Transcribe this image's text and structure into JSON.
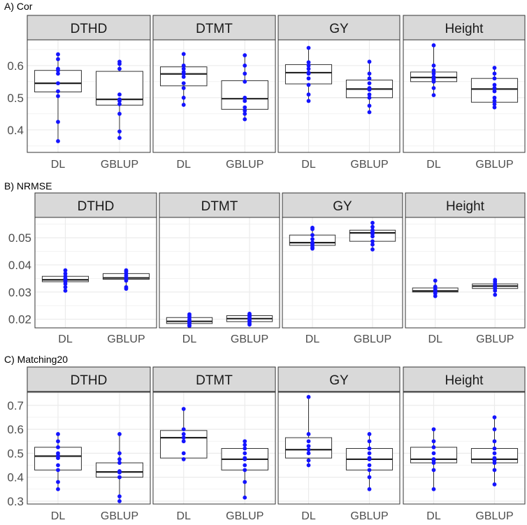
{
  "chart_data": [
    {
      "type": "boxplot",
      "title": "A) Cor",
      "panels": [
        "DTHD",
        "DTMT",
        "GY",
        "Height"
      ],
      "categories": [
        "DL",
        "GBLUP"
      ],
      "ylim": [
        0.33,
        0.68
      ],
      "yticks": [
        0.4,
        0.5,
        0.6
      ],
      "ytick_labels": [
        "0.4",
        "0.5",
        "0.6"
      ],
      "boxes": [
        [
          {
            "q1": 0.518,
            "median": 0.545,
            "q3": 0.585,
            "whislo": 0.365,
            "whishi": 0.635,
            "points": [
              0.365,
              0.425,
              0.505,
              0.52,
              0.545,
              0.575,
              0.585,
              0.59,
              0.62,
              0.635
            ]
          },
          {
            "q1": 0.477,
            "median": 0.495,
            "q3": 0.582,
            "whislo": 0.375,
            "whishi": 0.612,
            "points": [
              0.375,
              0.395,
              0.45,
              0.48,
              0.49,
              0.495,
              0.51,
              0.59,
              0.605,
              0.612
            ]
          }
        ],
        [
          {
            "q1": 0.537,
            "median": 0.574,
            "q3": 0.596,
            "whislo": 0.478,
            "whishi": 0.636,
            "points": [
              0.478,
              0.5,
              0.53,
              0.545,
              0.565,
              0.574,
              0.58,
              0.59,
              0.6,
              0.636
            ]
          },
          {
            "q1": 0.464,
            "median": 0.497,
            "q3": 0.553,
            "whislo": 0.433,
            "whishi": 0.632,
            "points": [
              0.433,
              0.45,
              0.46,
              0.47,
              0.49,
              0.5,
              0.55,
              0.575,
              0.6,
              0.632
            ]
          }
        ],
        [
          {
            "q1": 0.543,
            "median": 0.578,
            "q3": 0.603,
            "whislo": 0.49,
            "whishi": 0.655,
            "points": [
              0.49,
              0.51,
              0.54,
              0.56,
              0.575,
              0.578,
              0.59,
              0.6,
              0.61,
              0.655
            ]
          },
          {
            "q1": 0.5,
            "median": 0.527,
            "q3": 0.555,
            "whislo": 0.455,
            "whishi": 0.612,
            "points": [
              0.455,
              0.475,
              0.5,
              0.51,
              0.525,
              0.53,
              0.545,
              0.56,
              0.575,
              0.612
            ]
          }
        ],
        [
          {
            "q1": 0.55,
            "median": 0.563,
            "q3": 0.58,
            "whislo": 0.508,
            "whishi": 0.663,
            "points": [
              0.508,
              0.53,
              0.55,
              0.555,
              0.56,
              0.565,
              0.575,
              0.585,
              0.6,
              0.663
            ]
          },
          {
            "q1": 0.486,
            "median": 0.527,
            "q3": 0.56,
            "whislo": 0.47,
            "whishi": 0.593,
            "points": [
              0.47,
              0.48,
              0.49,
              0.5,
              0.52,
              0.53,
              0.54,
              0.56,
              0.575,
              0.593
            ]
          }
        ]
      ]
    },
    {
      "type": "boxplot",
      "title": "B) NRMSE",
      "panels": [
        "DTHD",
        "DTMT",
        "GY",
        "Height"
      ],
      "categories": [
        "DL",
        "GBLUP"
      ],
      "ylim": [
        0.0168,
        0.0575
      ],
      "yticks": [
        0.02,
        0.03,
        0.04,
        0.05
      ],
      "ytick_labels": [
        "0.02",
        "0.03",
        "0.04",
        "0.05"
      ],
      "boxes": [
        [
          {
            "q1": 0.0338,
            "median": 0.0345,
            "q3": 0.0358,
            "whislo": 0.0305,
            "whishi": 0.038,
            "points": [
              0.0305,
              0.0318,
              0.033,
              0.0338,
              0.0342,
              0.0345,
              0.035,
              0.0358,
              0.0368,
              0.038
            ]
          },
          {
            "q1": 0.0347,
            "median": 0.0352,
            "q3": 0.0368,
            "whislo": 0.0312,
            "whishi": 0.038,
            "points": [
              0.0312,
              0.0318,
              0.0342,
              0.0348,
              0.035,
              0.0352,
              0.036,
              0.0368,
              0.0375,
              0.038
            ]
          }
        ],
        [
          {
            "q1": 0.0184,
            "median": 0.0192,
            "q3": 0.0206,
            "whislo": 0.0175,
            "whishi": 0.0218,
            "points": [
              0.0175,
              0.0178,
              0.0184,
              0.0188,
              0.019,
              0.0192,
              0.0198,
              0.0206,
              0.0212,
              0.0218
            ]
          },
          {
            "q1": 0.0191,
            "median": 0.0202,
            "q3": 0.0213,
            "whislo": 0.018,
            "whishi": 0.022,
            "points": [
              0.018,
              0.0185,
              0.0191,
              0.0195,
              0.02,
              0.0202,
              0.0208,
              0.0213,
              0.0216,
              0.022
            ]
          }
        ],
        [
          {
            "q1": 0.0472,
            "median": 0.0482,
            "q3": 0.051,
            "whislo": 0.046,
            "whishi": 0.0537,
            "points": [
              0.046,
              0.0465,
              0.0472,
              0.0478,
              0.048,
              0.0482,
              0.0495,
              0.051,
              0.0532,
              0.0537
            ]
          },
          {
            "q1": 0.0487,
            "median": 0.0518,
            "q3": 0.0528,
            "whislo": 0.0457,
            "whishi": 0.0555,
            "points": [
              0.0457,
              0.0475,
              0.0487,
              0.0505,
              0.0515,
              0.0518,
              0.052,
              0.0528,
              0.054,
              0.0555
            ]
          }
        ],
        [
          {
            "q1": 0.03,
            "median": 0.0304,
            "q3": 0.0315,
            "whislo": 0.0285,
            "whishi": 0.0342,
            "points": [
              0.0285,
              0.0295,
              0.03,
              0.0302,
              0.0303,
              0.0304,
              0.0308,
              0.0315,
              0.032,
              0.0342
            ]
          },
          {
            "q1": 0.0313,
            "median": 0.0322,
            "q3": 0.033,
            "whislo": 0.029,
            "whishi": 0.0345,
            "points": [
              0.029,
              0.0305,
              0.0313,
              0.0316,
              0.032,
              0.0322,
              0.0326,
              0.033,
              0.0338,
              0.0345
            ]
          }
        ]
      ]
    },
    {
      "type": "boxplot",
      "title": "C) Matching20",
      "panels": [
        "DTHD",
        "DTMT",
        "GY",
        "Height"
      ],
      "categories": [
        "DL",
        "GBLUP"
      ],
      "ylim": [
        0.288,
        0.755
      ],
      "yticks": [
        0.3,
        0.4,
        0.5,
        0.6,
        0.7
      ],
      "ytick_labels": [
        "0.3",
        "0.4",
        "0.5",
        "0.6",
        "0.7"
      ],
      "boxes": [
        [
          {
            "q1": 0.43,
            "median": 0.488,
            "q3": 0.525,
            "whislo": 0.35,
            "whishi": 0.58,
            "points": [
              0.35,
              0.38,
              0.43,
              0.45,
              0.48,
              0.49,
              0.5,
              0.525,
              0.55,
              0.58
            ]
          },
          {
            "q1": 0.4,
            "median": 0.422,
            "q3": 0.46,
            "whislo": 0.3,
            "whishi": 0.58,
            "points": [
              0.3,
              0.32,
              0.4,
              0.4,
              0.42,
              0.425,
              0.46,
              0.475,
              0.5,
              0.58
            ]
          }
        ],
        [
          {
            "q1": 0.48,
            "median": 0.565,
            "q3": 0.595,
            "whislo": 0.475,
            "whishi": 0.685,
            "points": [
              0.475,
              0.5,
              0.55,
              0.565,
              0.58,
              0.6,
              0.685
            ]
          },
          {
            "q1": 0.43,
            "median": 0.475,
            "q3": 0.52,
            "whislo": 0.315,
            "whishi": 0.55,
            "points": [
              0.315,
              0.38,
              0.43,
              0.45,
              0.475,
              0.48,
              0.5,
              0.52,
              0.535,
              0.55
            ]
          }
        ],
        [
          {
            "q1": 0.48,
            "median": 0.515,
            "q3": 0.565,
            "whislo": 0.45,
            "whishi": 0.735,
            "points": [
              0.45,
              0.47,
              0.5,
              0.515,
              0.53,
              0.55,
              0.58,
              0.735
            ]
          },
          {
            "q1": 0.43,
            "median": 0.475,
            "q3": 0.52,
            "whislo": 0.35,
            "whishi": 0.58,
            "points": [
              0.35,
              0.4,
              0.43,
              0.45,
              0.475,
              0.48,
              0.5,
              0.52,
              0.55,
              0.58
            ]
          }
        ],
        [
          {
            "q1": 0.46,
            "median": 0.475,
            "q3": 0.525,
            "whislo": 0.35,
            "whishi": 0.6,
            "points": [
              0.35,
              0.43,
              0.46,
              0.47,
              0.475,
              0.5,
              0.525,
              0.55,
              0.6
            ]
          },
          {
            "q1": 0.46,
            "median": 0.475,
            "q3": 0.52,
            "whislo": 0.37,
            "whishi": 0.65,
            "points": [
              0.37,
              0.43,
              0.46,
              0.47,
              0.48,
              0.5,
              0.52,
              0.55,
              0.6,
              0.65
            ]
          }
        ]
      ]
    }
  ],
  "colors": {
    "point": "#1414ff",
    "strip": "#d9d9d9",
    "grid": "#ebebeb",
    "axis_text": "#4d4d4d"
  }
}
